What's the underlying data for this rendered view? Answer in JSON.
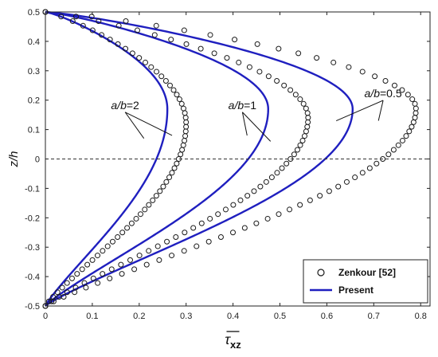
{
  "chart_data": {
    "type": "line",
    "title": "",
    "xlabel": "τ̄xz",
    "xlabel_main": "τ",
    "xlabel_sub": "xz",
    "ylabel": "z/h",
    "xlim": [
      0,
      0.82
    ],
    "ylim": [
      -0.5,
      0.5
    ],
    "x_ticks": [
      "0",
      "0.1",
      "0.2",
      "0.3",
      "0.4",
      "0.5",
      "0.6",
      "0.7",
      "0.8"
    ],
    "y_ticks": [
      "-0.5",
      "-0.4",
      "-0.3",
      "-0.2",
      "-0.1",
      "0",
      "0.1",
      "0.2",
      "0.3",
      "0.4",
      "0.5"
    ],
    "grid": false,
    "legend": {
      "position": "bottom-right",
      "entries": [
        {
          "label": "Zenkour [52]",
          "marker": "open-circle",
          "color": "#1a1a1a"
        },
        {
          "label": "Present",
          "marker": "line",
          "color": "#1f1fbf"
        }
      ]
    },
    "zero_line": {
      "y": 0,
      "style": "dashed"
    },
    "series": [
      {
        "group": "Present",
        "case": "a/b=2",
        "peak_x": 0.26,
        "z_peak": 0.17
      },
      {
        "group": "Present",
        "case": "a/b=1",
        "peak_x": 0.475,
        "z_peak": 0.17
      },
      {
        "group": "Present",
        "case": "a/b=0.5",
        "peak_x": 0.655,
        "z_peak": 0.17
      },
      {
        "group": "Zenkour [52]",
        "case": "a/b=2",
        "peak_x": 0.3,
        "z_peak": 0.12
      },
      {
        "group": "Zenkour [52]",
        "case": "a/b=1",
        "peak_x": 0.56,
        "z_peak": 0.14
      },
      {
        "group": "Zenkour [52]",
        "case": "a/b=0.5",
        "peak_x": 0.79,
        "z_peak": 0.17
      }
    ],
    "annotations": [
      {
        "text": "a/b=2",
        "x": 0.17,
        "y": 0.17,
        "arrow_to": [
          [
            0.21,
            0.07
          ],
          [
            0.27,
            0.08
          ]
        ]
      },
      {
        "text": "a/b=1",
        "x": 0.42,
        "y": 0.17,
        "arrow_to": [
          [
            0.43,
            0.08
          ],
          [
            0.48,
            0.06
          ]
        ]
      },
      {
        "text": "a/b=0.5",
        "x": 0.72,
        "y": 0.21,
        "arrow_to": [
          [
            0.62,
            0.13
          ],
          [
            0.71,
            0.13
          ]
        ]
      }
    ]
  }
}
